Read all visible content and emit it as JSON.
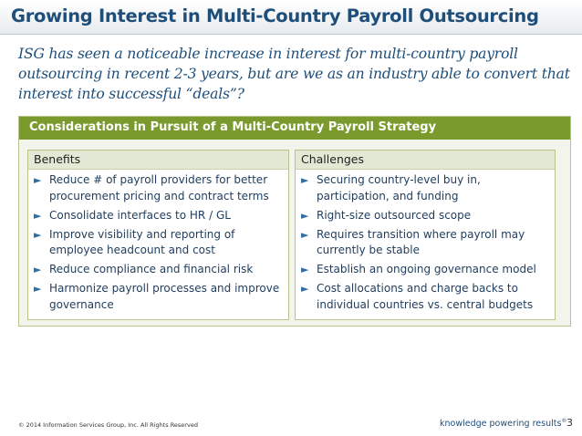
{
  "title": "Growing Interest in Multi-Country Payroll Outsourcing",
  "intro": "ISG has seen a noticeable increase in interest for multi-country payroll outsourcing in recent 2-3 years, but are we as an industry able to convert that interest into successful “deals”?",
  "panel": {
    "title": "Considerations in Pursuit of a Multi-Country Payroll Strategy",
    "bullet_glyph": "►",
    "benefits": {
      "title": "Benefits",
      "items": [
        "Reduce # of payroll providers for better procurement pricing and contract terms",
        "Consolidate interfaces to HR / GL",
        "Improve visibility and reporting of employee headcount and cost",
        "Reduce compliance and financial risk",
        "Harmonize payroll processes and improve governance"
      ]
    },
    "challenges": {
      "title": "Challenges",
      "items": [
        "Securing country-level buy in, participation, and funding",
        "Right-size outsourced scope",
        "Requires transition where payroll may currently be stable",
        "Establish an ongoing governance model",
        "Cost allocations and charge backs to individual countries vs. central budgets"
      ]
    }
  },
  "footer": {
    "copyright": "© 2014 Information Services Group, Inc. All Rights Reserved",
    "tagline": "knowledge powering results",
    "tagline_mark": "®",
    "page_number": "3"
  }
}
